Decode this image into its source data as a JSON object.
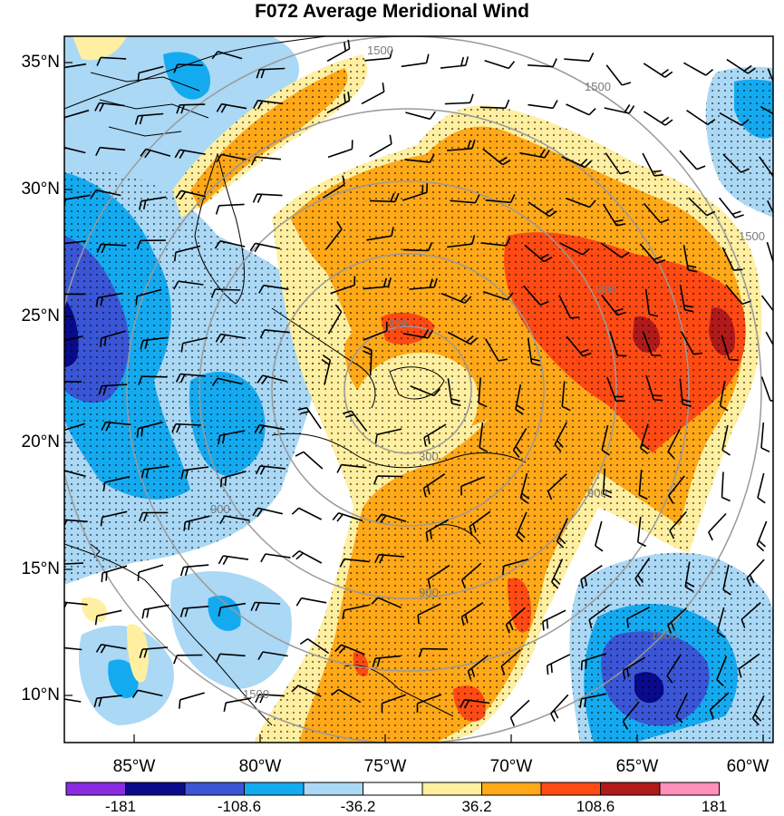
{
  "title": "F072 Average Meridional Wind",
  "lat_labels": [
    "35°N",
    "30°N",
    "25°N",
    "20°N",
    "15°N",
    "10°N"
  ],
  "lon_labels": [
    "85°W",
    "80°W",
    "75°W",
    "70°W",
    "65°W",
    "60°W"
  ],
  "colorbar": {
    "colors": [
      "#8a2be2",
      "#0a0a8c",
      "#3a55d6",
      "#14aaf0",
      "#aad8f5",
      "#ffffff",
      "#ffefa0",
      "#ffa818",
      "#ff4a14",
      "#b01a1a",
      "#ff90b8"
    ],
    "labels": [
      "-181",
      "-108.6",
      "-36.2",
      "36.2",
      "108.6",
      "181"
    ]
  },
  "range_ring_labels": [
    "1500",
    "1500",
    "1500",
    "300",
    "300",
    "900",
    "900",
    "900",
    "900",
    "1500",
    "1500"
  ]
}
